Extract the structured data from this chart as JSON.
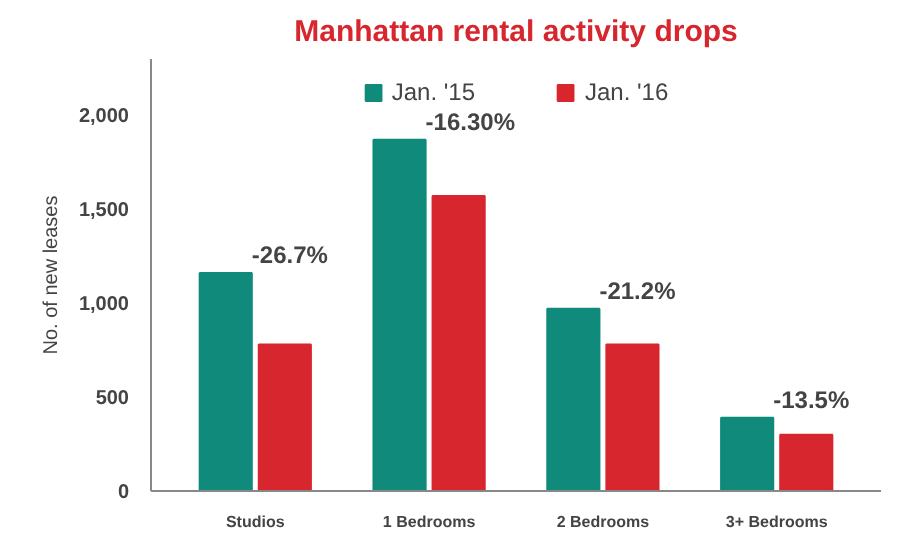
{
  "chart_data": {
    "type": "bar",
    "title": "Manhattan rental activity drops",
    "ylabel": "No. of new leases",
    "categories": [
      "Studios",
      "1 Bedrooms",
      "2 Bedrooms",
      "3+ Bedrooms"
    ],
    "series": [
      {
        "name": "Jan. '15",
        "color": "#0f8a7b",
        "values": [
          1160,
          1870,
          970,
          390
        ]
      },
      {
        "name": "Jan. '16",
        "color": "#d7262e",
        "values": [
          780,
          1570,
          780,
          300
        ]
      }
    ],
    "ylim": [
      0,
      2300
    ],
    "yticks": [
      0,
      {
        "value": 500,
        "label": "500"
      },
      {
        "value": 1000,
        "label": "1,000"
      },
      {
        "value": 1500,
        "label": "1,500"
      },
      {
        "value": 2000,
        "label": "2,000"
      }
    ],
    "annotations": [
      {
        "text": "-26.7%",
        "x": "Studios",
        "y": 1160
      },
      {
        "text": "-16.30%",
        "x": "1 Bedrooms",
        "y": 1870
      },
      {
        "text": "-21.2%",
        "x": "2 Bedrooms",
        "y": 970
      },
      {
        "text": "-13.5%",
        "x": "3+ Bedrooms",
        "y": 390
      }
    ],
    "legend": "top",
    "grid": false
  }
}
